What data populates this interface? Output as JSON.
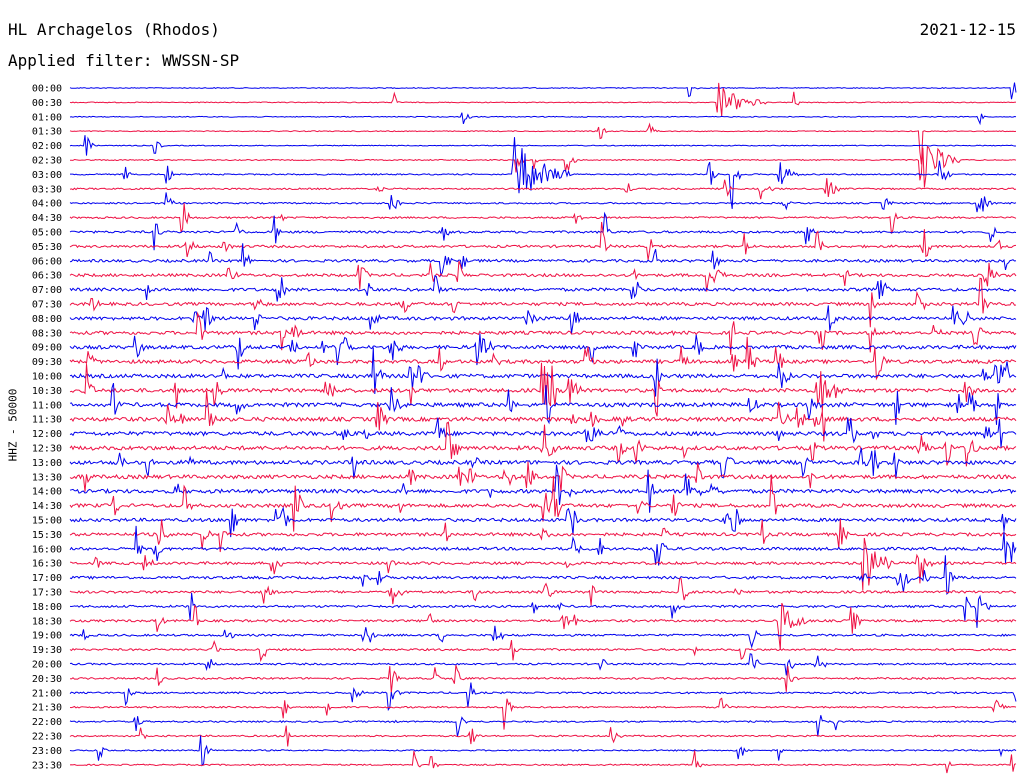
{
  "header": {
    "station": "HL Archagelos (Rhodos)",
    "filter": "Applied filter: WWSSN-SP",
    "date": "2021-12-15"
  },
  "chart_data": {
    "type": "line",
    "kind": "helicorder",
    "ylabel": "HHZ - 50000",
    "trace_colors": [
      "#0000ee",
      "#ee1144"
    ],
    "times": [
      "00:00",
      "00:30",
      "01:00",
      "01:30",
      "02:00",
      "02:30",
      "03:00",
      "03:30",
      "04:00",
      "04:30",
      "05:00",
      "05:30",
      "06:00",
      "06:30",
      "07:00",
      "07:30",
      "08:00",
      "08:30",
      "09:00",
      "09:30",
      "10:00",
      "10:30",
      "11:00",
      "11:30",
      "12:00",
      "12:30",
      "13:00",
      "13:30",
      "14:00",
      "14:30",
      "15:00",
      "15:30",
      "16:00",
      "16:30",
      "17:00",
      "17:30",
      "18:00",
      "18:30",
      "19:00",
      "19:30",
      "20:00",
      "20:30",
      "21:00",
      "21:30",
      "22:00",
      "22:30",
      "23:00",
      "23:30"
    ],
    "noise_level": [
      0.4,
      0.4,
      0.4,
      0.4,
      0.4,
      0.5,
      0.6,
      0.7,
      0.7,
      0.8,
      1.0,
      1.1,
      1.2,
      1.3,
      1.4,
      1.4,
      1.5,
      1.5,
      1.6,
      1.6,
      1.7,
      1.7,
      1.8,
      1.8,
      1.8,
      1.8,
      1.8,
      1.7,
      1.7,
      1.6,
      1.5,
      1.4,
      1.3,
      1.2,
      1.2,
      1.1,
      1.0,
      1.0,
      0.9,
      0.9,
      0.8,
      0.8,
      0.8,
      0.7,
      0.7,
      0.7,
      0.6,
      0.6
    ],
    "events": [
      {
        "row": 1,
        "at": 0.7,
        "amp": 1.0,
        "len": 0.004
      },
      {
        "row": 1,
        "at": 0.685,
        "amp": 0.6,
        "len": 0.05
      },
      {
        "row": 3,
        "at": 0.9,
        "amp": 1.0,
        "len": 0.003
      },
      {
        "row": 5,
        "at": 0.9,
        "amp": 0.9,
        "len": 0.04
      },
      {
        "row": 6,
        "at": 0.47,
        "amp": 1.0,
        "len": 0.06
      },
      {
        "row": 6,
        "at": 0.7,
        "amp": 1.0,
        "len": 0.01
      },
      {
        "row": 6,
        "at": 0.75,
        "amp": 0.5,
        "len": 0.02
      },
      {
        "row": 7,
        "at": 0.8,
        "amp": 0.4,
        "len": 0.015
      },
      {
        "row": 8,
        "at": 0.34,
        "amp": 0.4,
        "len": 0.01
      },
      {
        "row": 8,
        "at": 0.96,
        "amp": 0.4,
        "len": 0.015
      },
      {
        "row": 10,
        "at": 0.09,
        "amp": 0.5,
        "len": 0.01
      },
      {
        "row": 11,
        "at": 0.79,
        "amp": 0.5,
        "len": 0.01
      },
      {
        "row": 13,
        "at": 0.41,
        "amp": 0.5,
        "len": 0.01
      },
      {
        "row": 18,
        "at": 0.43,
        "amp": 0.6,
        "len": 0.02
      },
      {
        "row": 21,
        "at": 0.5,
        "amp": 0.8,
        "len": 0.03
      },
      {
        "row": 21,
        "at": 0.79,
        "amp": 0.9,
        "len": 0.03
      },
      {
        "row": 25,
        "at": 0.4,
        "amp": 0.7,
        "len": 0.015
      },
      {
        "row": 29,
        "at": 0.51,
        "amp": 0.6,
        "len": 0.01
      },
      {
        "row": 33,
        "at": 0.84,
        "amp": 1.0,
        "len": 0.03
      },
      {
        "row": 37,
        "at": 0.75,
        "amp": 0.9,
        "len": 0.03
      },
      {
        "row": 38,
        "at": 0.72,
        "amp": 0.5,
        "len": 0.01
      },
      {
        "row": 41,
        "at": 0.34,
        "amp": 0.4,
        "len": 0.01
      },
      {
        "row": 43,
        "at": 0.46,
        "amp": 0.6,
        "len": 0.01
      },
      {
        "row": 44,
        "at": 0.41,
        "amp": 0.6,
        "len": 0.01
      },
      {
        "row": 46,
        "at": 0.14,
        "amp": 0.5,
        "len": 0.01
      },
      {
        "row": 47,
        "at": 0.66,
        "amp": 0.4,
        "len": 0.008
      }
    ]
  }
}
